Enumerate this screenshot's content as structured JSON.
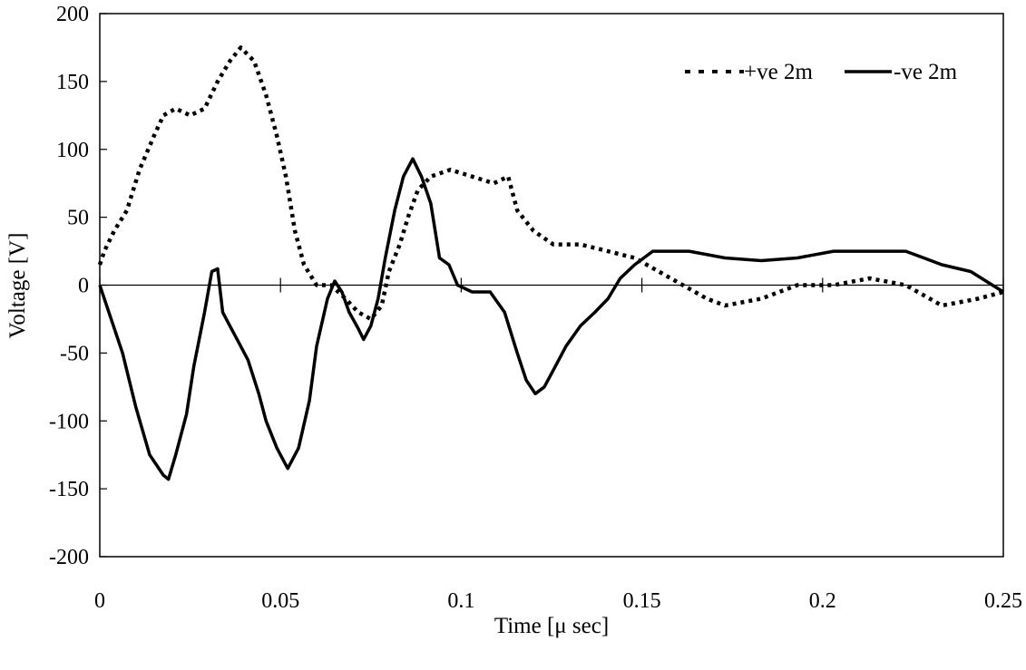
{
  "chart_data": {
    "type": "line",
    "title": "",
    "xlabel": "Time [μ sec]",
    "ylabel": "Voltage [V]",
    "xlim": [
      0,
      0.25
    ],
    "ylim": [
      -200,
      200
    ],
    "xticks": [
      0,
      0.05,
      0.1,
      0.15,
      0.2,
      0.25
    ],
    "xtick_labels": [
      "0",
      "0.05",
      "0.1",
      "0.15",
      "0.2",
      "0.25"
    ],
    "yticks": [
      -200,
      -150,
      -100,
      -50,
      0,
      50,
      100,
      150,
      200
    ],
    "ytick_labels": [
      "-200",
      "-150",
      "-100",
      "-50",
      "0",
      "50",
      "100",
      "150",
      "200"
    ],
    "grid": false,
    "legend_position": "top-right",
    "colors": {
      "line": "#000000",
      "axis": "#000000"
    },
    "series": [
      {
        "name": "+ve 2m",
        "style": "dotted",
        "x": [
          0,
          0.00125,
          0.004,
          0.0075,
          0.011,
          0.015,
          0.0176,
          0.021,
          0.025,
          0.029,
          0.0326,
          0.036,
          0.039,
          0.0427,
          0.046,
          0.049,
          0.0515,
          0.054,
          0.0565,
          0.06,
          0.064,
          0.068,
          0.0715,
          0.075,
          0.078,
          0.08,
          0.083,
          0.0853,
          0.088,
          0.0916,
          0.097,
          0.103,
          0.109,
          0.113,
          0.1155,
          0.12,
          0.1255,
          0.133,
          0.1406,
          0.148,
          0.158,
          0.168,
          0.173,
          0.183,
          0.193,
          0.203,
          0.213,
          0.223,
          0.233,
          0.243,
          0.25
        ],
        "y": [
          15,
          25,
          40,
          55,
          85,
          110,
          125,
          130,
          125,
          130,
          150,
          165,
          175,
          165,
          140,
          110,
          80,
          40,
          15,
          0,
          0,
          -10,
          -20,
          -25,
          -15,
          10,
          30,
          50,
          70,
          80,
          85,
          80,
          75,
          80,
          55,
          40,
          30,
          30,
          25,
          20,
          5,
          -10,
          -15,
          -10,
          0,
          0,
          5,
          0,
          -15,
          -10,
          -5
        ]
      },
      {
        "name": "-ve 2m",
        "style": "solid",
        "x": [
          0,
          0.0025,
          0.0063,
          0.01,
          0.0138,
          0.0176,
          0.019,
          0.021,
          0.024,
          0.026,
          0.029,
          0.031,
          0.0326,
          0.034,
          0.036,
          0.039,
          0.041,
          0.044,
          0.046,
          0.049,
          0.052,
          0.055,
          0.058,
          0.06,
          0.063,
          0.065,
          0.067,
          0.069,
          0.0715,
          0.073,
          0.075,
          0.077,
          0.079,
          0.0816,
          0.084,
          0.0866,
          0.089,
          0.0916,
          0.094,
          0.0966,
          0.099,
          0.103,
          0.108,
          0.112,
          0.1155,
          0.118,
          0.1205,
          0.123,
          0.126,
          0.129,
          0.133,
          0.137,
          0.1406,
          0.144,
          0.148,
          0.153,
          0.163,
          0.173,
          0.183,
          0.193,
          0.203,
          0.213,
          0.223,
          0.233,
          0.241,
          0.25
        ],
        "y": [
          0,
          -20,
          -50,
          -90,
          -125,
          -140,
          -143,
          -125,
          -95,
          -60,
          -20,
          10,
          12,
          -20,
          -30,
          -45,
          -55,
          -80,
          -100,
          -120,
          -135,
          -120,
          -85,
          -45,
          -10,
          3,
          -5,
          -20,
          -32,
          -40,
          -30,
          -10,
          20,
          55,
          80,
          93,
          80,
          60,
          20,
          15,
          0,
          -5,
          -5,
          -20,
          -50,
          -70,
          -80,
          -75,
          -60,
          -45,
          -30,
          -20,
          -10,
          5,
          15,
          25,
          25,
          20,
          18,
          20,
          25,
          25,
          25,
          15,
          10,
          -5
        ]
      }
    ]
  }
}
